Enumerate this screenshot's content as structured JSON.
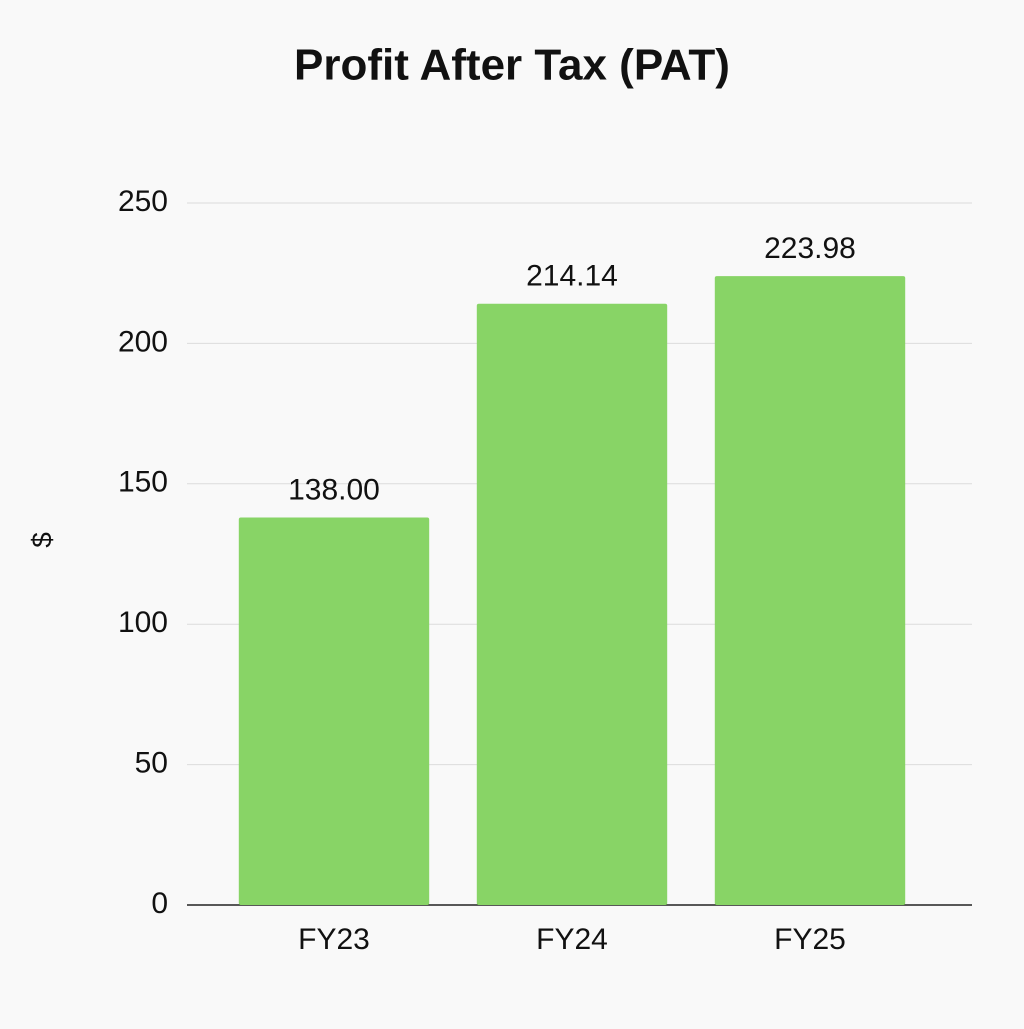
{
  "chart_data": {
    "type": "bar",
    "title": "Profit After Tax (PAT)",
    "y_label": "$",
    "categories": [
      "FY23",
      "FY24",
      "FY25"
    ],
    "values": [
      138.0,
      214.14,
      223.98
    ],
    "value_labels": [
      "138.00",
      "214.14",
      "223.98"
    ],
    "color": "#88d466",
    "ylim": [
      0,
      250
    ],
    "yticks": [
      0,
      50,
      100,
      150,
      200,
      250
    ],
    "grid": true
  }
}
